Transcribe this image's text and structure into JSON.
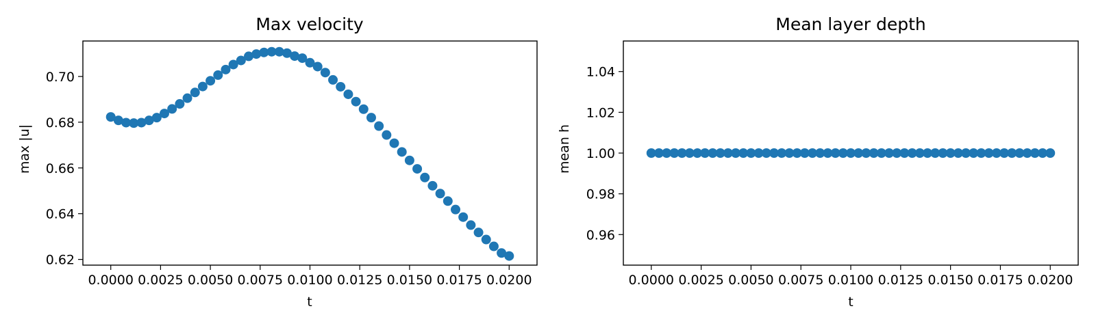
{
  "colors": {
    "marker": "#1f77b4",
    "axes": "#000000",
    "background": "#ffffff"
  },
  "chart_data": [
    {
      "type": "scatter",
      "title": "Max velocity",
      "xlabel": "t",
      "ylabel": "max |u|",
      "xlim": [
        -0.0014,
        0.0214
      ],
      "ylim": [
        0.6175,
        0.7155
      ],
      "xticks": [
        0.0,
        0.0025,
        0.005,
        0.0075,
        0.01,
        0.0125,
        0.015,
        0.0175,
        0.02
      ],
      "xtick_labels": [
        "0.0000",
        "0.0025",
        "0.0050",
        "0.0075",
        "0.0100",
        "0.0125",
        "0.0150",
        "0.0175",
        "0.0200"
      ],
      "yticks": [
        0.62,
        0.64,
        0.66,
        0.68,
        0.7
      ],
      "ytick_labels": [
        "0.62",
        "0.64",
        "0.66",
        "0.68",
        "0.70"
      ],
      "grid": false,
      "series": [
        {
          "x": [
            0.0,
            0.000385,
            0.000769,
            0.001154,
            0.001538,
            0.001923,
            0.002308,
            0.002692,
            0.003077,
            0.003462,
            0.003846,
            0.004231,
            0.004615,
            0.005,
            0.005385,
            0.005769,
            0.006154,
            0.006538,
            0.006923,
            0.007308,
            0.007692,
            0.008077,
            0.008462,
            0.008846,
            0.009231,
            0.009615,
            0.01,
            0.010385,
            0.010769,
            0.011154,
            0.011538,
            0.011923,
            0.012308,
            0.012692,
            0.013077,
            0.013462,
            0.013846,
            0.014231,
            0.014615,
            0.015,
            0.015385,
            0.015769,
            0.016154,
            0.016538,
            0.016923,
            0.017308,
            0.017692,
            0.018077,
            0.018462,
            0.018846,
            0.019231,
            0.019615,
            0.02
          ],
          "y": [
            0.6823,
            0.6808,
            0.6798,
            0.6796,
            0.6798,
            0.6808,
            0.682,
            0.6838,
            0.6858,
            0.688,
            0.6905,
            0.693,
            0.6956,
            0.6981,
            0.7006,
            0.703,
            0.7052,
            0.707,
            0.7088,
            0.7098,
            0.7105,
            0.7108,
            0.7108,
            0.7102,
            0.7089,
            0.708,
            0.706,
            0.7043,
            0.7017,
            0.6985,
            0.6955,
            0.6922,
            0.689,
            0.6857,
            0.682,
            0.6783,
            0.6744,
            0.6708,
            0.667,
            0.6633,
            0.6596,
            0.6558,
            0.6522,
            0.6488,
            0.6455,
            0.6418,
            0.6385,
            0.635,
            0.6318,
            0.6287,
            0.6257,
            0.6228,
            0.6215
          ]
        }
      ]
    },
    {
      "type": "scatter",
      "title": "Mean layer depth",
      "xlabel": "t",
      "ylabel": "mean h",
      "xlim": [
        -0.0014,
        0.0214
      ],
      "ylim": [
        0.945,
        1.055
      ],
      "xticks": [
        0.0,
        0.0025,
        0.005,
        0.0075,
        0.01,
        0.0125,
        0.015,
        0.0175,
        0.02
      ],
      "xtick_labels": [
        "0.0000",
        "0.0025",
        "0.0050",
        "0.0075",
        "0.0100",
        "0.0125",
        "0.0150",
        "0.0175",
        "0.0200"
      ],
      "yticks": [
        0.96,
        0.98,
        1.0,
        1.02,
        1.04
      ],
      "ytick_labels": [
        "0.96",
        "0.98",
        "1.00",
        "1.02",
        "1.04"
      ],
      "grid": false,
      "series": [
        {
          "x": [
            0.0,
            0.000385,
            0.000769,
            0.001154,
            0.001538,
            0.001923,
            0.002308,
            0.002692,
            0.003077,
            0.003462,
            0.003846,
            0.004231,
            0.004615,
            0.005,
            0.005385,
            0.005769,
            0.006154,
            0.006538,
            0.006923,
            0.007308,
            0.007692,
            0.008077,
            0.008462,
            0.008846,
            0.009231,
            0.009615,
            0.01,
            0.010385,
            0.010769,
            0.011154,
            0.011538,
            0.011923,
            0.012308,
            0.012692,
            0.013077,
            0.013462,
            0.013846,
            0.014231,
            0.014615,
            0.015,
            0.015385,
            0.015769,
            0.016154,
            0.016538,
            0.016923,
            0.017308,
            0.017692,
            0.018077,
            0.018462,
            0.018846,
            0.019231,
            0.019615,
            0.02
          ],
          "y": [
            1.0,
            1.0,
            1.0,
            1.0,
            1.0,
            1.0,
            1.0,
            1.0,
            1.0,
            1.0,
            1.0,
            1.0,
            1.0,
            1.0,
            1.0,
            1.0,
            1.0,
            1.0,
            1.0,
            1.0,
            1.0,
            1.0,
            1.0,
            1.0,
            1.0,
            1.0,
            1.0,
            1.0,
            1.0,
            1.0,
            1.0,
            1.0,
            1.0,
            1.0,
            1.0,
            1.0,
            1.0,
            1.0,
            1.0,
            1.0,
            1.0,
            1.0,
            1.0,
            1.0,
            1.0,
            1.0,
            1.0,
            1.0,
            1.0,
            1.0,
            1.0,
            1.0,
            1.0
          ]
        }
      ]
    }
  ]
}
